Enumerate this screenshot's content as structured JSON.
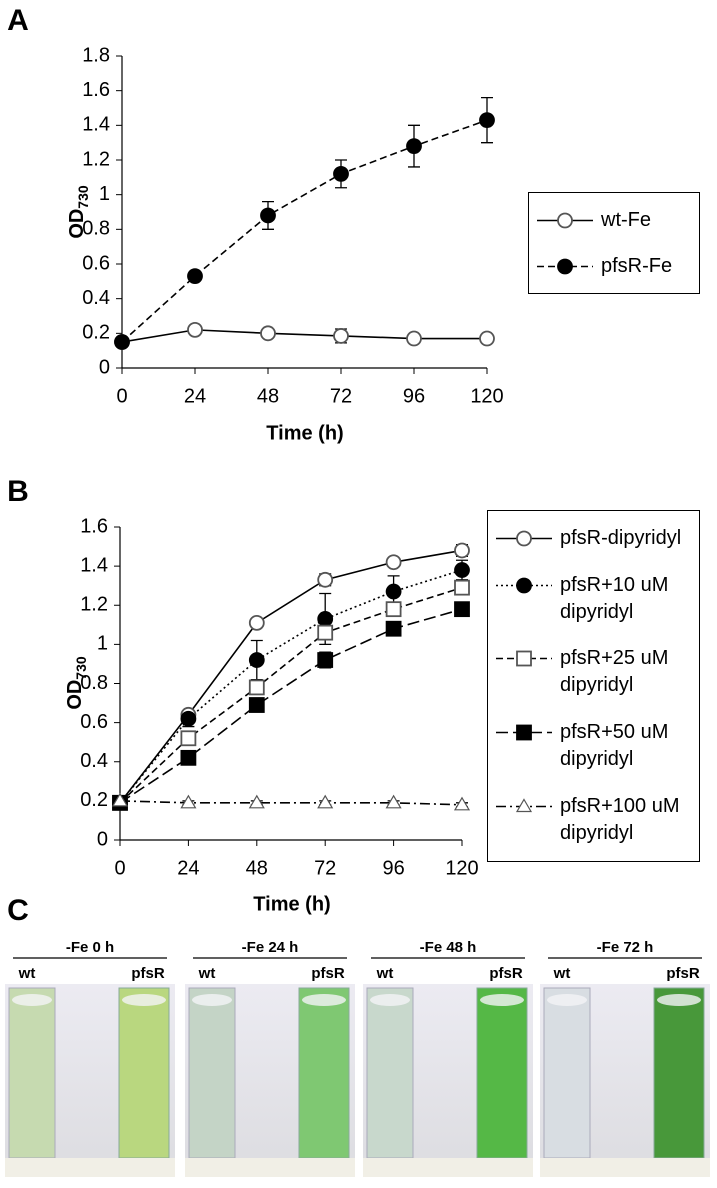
{
  "chart_data": [
    {
      "type": "line",
      "panel_label": "A",
      "ylabel": {
        "text": "OD",
        "sub": "730"
      },
      "xlabel": "Time (h)",
      "x": [
        0,
        24,
        48,
        72,
        96,
        120
      ],
      "xlim": [
        0,
        120
      ],
      "xticks": [
        0,
        24,
        48,
        72,
        96,
        120
      ],
      "ylim": [
        0,
        1.8
      ],
      "yticks": [
        0,
        0.2,
        0.4,
        0.6,
        0.8,
        1,
        1.2,
        1.4,
        1.6,
        1.8
      ],
      "grid": false,
      "series": [
        {
          "name": "wt-Fe",
          "color": "#000000",
          "marker": "circle",
          "filled": false,
          "dash": "solid",
          "values": [
            0.15,
            0.22,
            0.2,
            0.185,
            0.17,
            0.17
          ],
          "errors": [
            0.01,
            0.01,
            0.02,
            0.04,
            0.02,
            0.01
          ]
        },
        {
          "name": "pfsR-Fe",
          "color": "#000000",
          "marker": "circle",
          "filled": true,
          "dash": "dashed",
          "values": [
            0.15,
            0.53,
            0.88,
            1.12,
            1.28,
            1.43
          ],
          "errors": [
            0.01,
            0.02,
            0.08,
            0.08,
            0.12,
            0.13
          ]
        }
      ]
    },
    {
      "type": "line",
      "panel_label": "B",
      "ylabel": {
        "text": "OD",
        "sub": "730"
      },
      "xlabel": "Time (h)",
      "x": [
        0,
        24,
        48,
        72,
        96,
        120
      ],
      "xlim": [
        0,
        120
      ],
      "xticks": [
        0,
        24,
        48,
        72,
        96,
        120
      ],
      "ylim": [
        0,
        1.6
      ],
      "yticks": [
        0,
        0.2,
        0.4,
        0.6,
        0.8,
        1,
        1.2,
        1.4,
        1.6
      ],
      "grid": false,
      "series": [
        {
          "name": "pfsR-dipyridyl",
          "color": "#000000",
          "marker": "circle",
          "filled": false,
          "dash": "solid",
          "values": [
            0.19,
            0.64,
            1.11,
            1.33,
            1.42,
            1.48
          ],
          "errors": [
            0.01,
            0.02,
            0.02,
            0.03,
            0.02,
            0.03
          ]
        },
        {
          "name": "pfsR+10 uM dipyridyl",
          "color": "#000000",
          "marker": "circle",
          "filled": true,
          "dash": "dotted",
          "values": [
            0.19,
            0.62,
            0.92,
            1.13,
            1.27,
            1.38
          ],
          "errors": [
            0.01,
            0.04,
            0.1,
            0.13,
            0.08,
            0.05
          ]
        },
        {
          "name": "pfsR+25 uM dipyridyl",
          "color": "#000000",
          "marker": "square",
          "filled": false,
          "dash": "dashed",
          "values": [
            0.19,
            0.52,
            0.78,
            1.06,
            1.18,
            1.29
          ],
          "errors": [
            0.01,
            0.02,
            0.03,
            0.03,
            0.02,
            0.02
          ]
        },
        {
          "name": "pfsR+50 uM dipyridyl",
          "color": "#000000",
          "marker": "square",
          "filled": true,
          "dash": "long-dashed",
          "values": [
            0.19,
            0.42,
            0.69,
            0.92,
            1.08,
            1.18
          ],
          "errors": [
            0.01,
            0.02,
            0.02,
            0.04,
            0.02,
            0.02
          ]
        },
        {
          "name": "pfsR+100 uM dipyridyl",
          "color": "#000000",
          "marker": "triangle",
          "filled": false,
          "dash": "dash-dot",
          "values": [
            0.2,
            0.19,
            0.19,
            0.19,
            0.19,
            0.18
          ],
          "errors": [
            0.01,
            0.01,
            0.01,
            0.01,
            0.01,
            0.01
          ]
        }
      ]
    }
  ],
  "panel_c": {
    "label": "C",
    "groups": [
      {
        "title": "-Fe 0 h",
        "left": "wt",
        "right": "pfsR"
      },
      {
        "title": "-Fe 24 h",
        "left": "wt",
        "right": "pfsR"
      },
      {
        "title": "-Fe 48 h",
        "left": "wt",
        "right": "pfsR"
      },
      {
        "title": "-Fe 72 h",
        "left": "wt",
        "right": "pfsR"
      }
    ]
  }
}
